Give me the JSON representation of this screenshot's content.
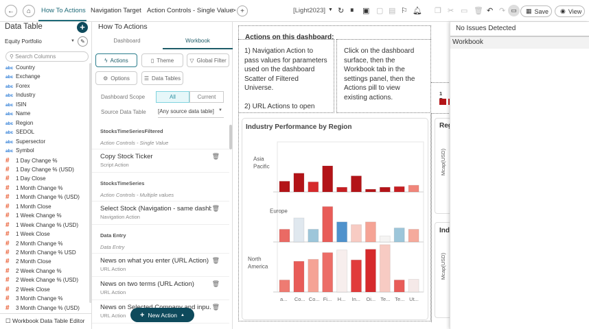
{
  "topbar": {
    "tabs": [
      "How To Actions",
      "Navigation Target",
      "Action Controls - Single Value"
    ],
    "more": ">",
    "theme": "[Light2023]",
    "save": "Save",
    "view": "View"
  },
  "left": {
    "title": "Data Table",
    "table": "Equity Portfolio",
    "search_placeholder": "Search Columns",
    "footer": "Workbook Data Table Editor",
    "columns": [
      {
        "type": "abc",
        "name": "Country"
      },
      {
        "type": "abc",
        "name": "Exchange"
      },
      {
        "type": "abc",
        "name": "Forex"
      },
      {
        "type": "abc",
        "name": "Industry"
      },
      {
        "type": "abc",
        "name": "ISIN"
      },
      {
        "type": "abc",
        "name": "Name"
      },
      {
        "type": "abc",
        "name": "Region"
      },
      {
        "type": "abc",
        "name": "SEDOL"
      },
      {
        "type": "abc",
        "name": "Supersector"
      },
      {
        "type": "abc",
        "name": "Symbol"
      },
      {
        "type": "#",
        "name": "1 Day Change %"
      },
      {
        "type": "#",
        "name": "1 Day Change % (USD)"
      },
      {
        "type": "#",
        "name": "1 Day Close"
      },
      {
        "type": "#",
        "name": "1 Month Change %"
      },
      {
        "type": "#",
        "name": "1 Month Change % (USD)"
      },
      {
        "type": "#",
        "name": "1 Month Close"
      },
      {
        "type": "#",
        "name": "1 Week Change %"
      },
      {
        "type": "#",
        "name": "1 Week Change % (USD)"
      },
      {
        "type": "#",
        "name": "1 Week Close"
      },
      {
        "type": "#",
        "name": "2 Month Change %"
      },
      {
        "type": "#",
        "name": "2 Month Change % USD"
      },
      {
        "type": "#",
        "name": "2 Month Close"
      },
      {
        "type": "#",
        "name": "2 Week Change %"
      },
      {
        "type": "#",
        "name": "2 Week Change % (USD)"
      },
      {
        "type": "#",
        "name": "2 Week Close"
      },
      {
        "type": "#",
        "name": "3 Month Change %"
      },
      {
        "type": "#",
        "name": "3 Month Change % (USD)"
      }
    ]
  },
  "mid": {
    "title": "How To Actions",
    "tabs": [
      "Dashboard",
      "Workbook"
    ],
    "pills": [
      "Actions",
      "Theme",
      "Global Filter",
      "Options",
      "Data Tables"
    ],
    "scope_label": "Dashboard Scope",
    "scope_options": [
      "All",
      "Current"
    ],
    "source_label": "Source Data Table",
    "source_value": "[Any source data table]",
    "groups": [
      {
        "header": "StocksTimeSeriesFiltered",
        "sub": "Action Controls - Single Value",
        "items": [
          {
            "name": "Copy Stock Ticker",
            "type": "Script Action"
          }
        ]
      },
      {
        "header": "StocksTimeSeries",
        "sub": "Action Controls - Multiple values",
        "items": [
          {
            "name": "Select Stock (Navigation - same dashb...",
            "type": "Navigation Action"
          }
        ]
      },
      {
        "header": "Data Entry",
        "sub": "Data Entry",
        "items": [
          {
            "name": "News on what you enter (URL Action)",
            "type": "URL Action"
          },
          {
            "name": "News on two terms (URL Action)",
            "type": "URL Action"
          },
          {
            "name": "News on Selected Company and inpu...",
            "type": "URL Action"
          }
        ]
      }
    ],
    "new_action": "New Action"
  },
  "dash": {
    "heading": "Actions on this dashboard:",
    "text1": "1) Navigation Action to pass values for parameters used on the dashboard Scatter of Filtered Universe.\n\n2) URL Actions to open",
    "text2": "Click on the dashboard surface, then the Workbook tab in the settings panel, then the Actions pill to view existing actions.",
    "legend_title": "1 Da",
    "card2_title": "Reg",
    "card3_title": "Ind",
    "ylabel": "Mcap(USD)"
  },
  "chart_data": {
    "type": "bar",
    "title": "Industry Performance by Region",
    "categories": [
      "a...",
      "Co...",
      "Co...",
      "Fi...",
      "H...",
      "In...",
      "Oi...",
      "Te...",
      "Te...",
      "Ut..."
    ],
    "ylim": [
      0,
      75
    ],
    "series": [
      {
        "name": "Asia Pacific",
        "label": [
          "Asia",
          "Pacific"
        ],
        "values": [
          16,
          28,
          15,
          39,
          7,
          24,
          4,
          7,
          8,
          10
        ],
        "colors": [
          "#b31418",
          "#b31418",
          "#d62a2c",
          "#b31418",
          "#c61e22",
          "#b31418",
          "#b31418",
          "#b31418",
          "#c61e22",
          "#f0857a"
        ]
      },
      {
        "name": "Europe",
        "label": [
          "Europe"
        ],
        "values": [
          19,
          36,
          19,
          53,
          30,
          26,
          30,
          9,
          21,
          19
        ],
        "colors": [
          "#ea6a64",
          "#e0e8ef",
          "#9dc6da",
          "#e85c58",
          "#4f92cc",
          "#f7cbc3",
          "#f5a395",
          "#f5f4f3",
          "#9dc6da",
          "#f5aa9c"
        ]
      },
      {
        "name": "North America",
        "label": [
          "North",
          "America"
        ],
        "values": [
          18,
          46,
          49,
          59,
          63,
          48,
          64,
          71,
          18,
          19
        ],
        "colors": [
          "#ee7b72",
          "#e85c58",
          "#f5a395",
          "#ec6d67",
          "#f7eeed",
          "#e13b3b",
          "#d62a2c",
          "#f7cbc3",
          "#e85c58",
          "#f5e9e8"
        ]
      }
    ]
  },
  "right": {
    "status": "No Issues Detected",
    "row": "Workbook"
  }
}
